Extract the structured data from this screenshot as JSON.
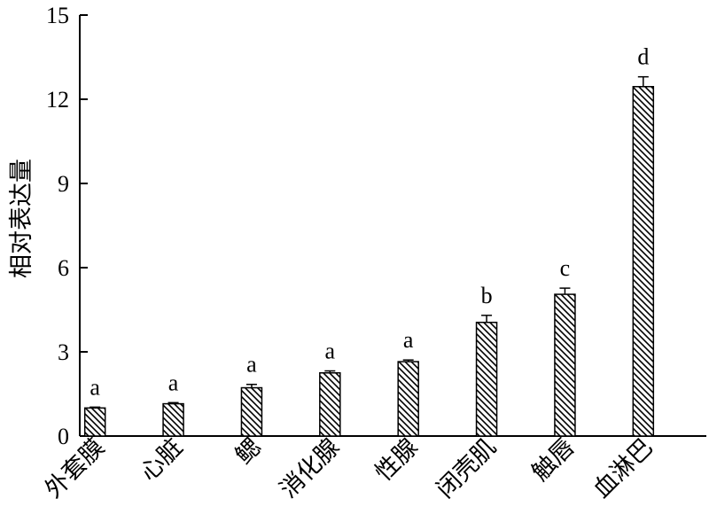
{
  "chart_data": {
    "type": "bar",
    "ylabel": "相对表达量",
    "ylim": [
      0,
      15
    ],
    "yticks": [
      0,
      3,
      6,
      9,
      12,
      15
    ],
    "grid": false,
    "pattern": "diagonal-hatch",
    "categories": [
      "外套膜",
      "心脏",
      "鳃",
      "消化腺",
      "性腺",
      "闭壳肌",
      "触唇",
      "血淋巴"
    ],
    "values": [
      1.0,
      1.15,
      1.72,
      2.25,
      2.65,
      4.05,
      5.05,
      12.45
    ],
    "errors": [
      0.03,
      0.04,
      0.12,
      0.07,
      0.06,
      0.25,
      0.22,
      0.35
    ],
    "significance": [
      "a",
      "a",
      "a",
      "a",
      "a",
      "b",
      "c",
      "d"
    ]
  }
}
